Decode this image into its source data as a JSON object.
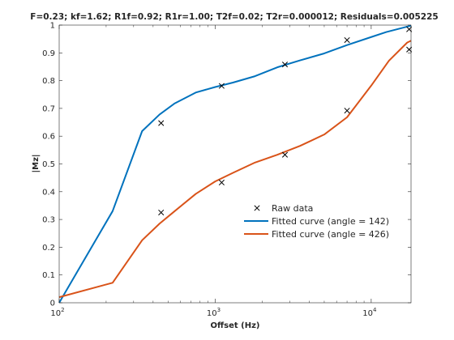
{
  "chart_data": {
    "type": "line",
    "title": "F=0.23; kf=1.62; R1f=0.92; R1r=1.00; T2f=0.02; T2r=0.000012; Residuals=0.005225",
    "xlabel": "Offset (Hz)",
    "ylabel": "|Mz|",
    "xscale": "log",
    "xlim": [
      100,
      18000
    ],
    "ylim": [
      0,
      1
    ],
    "yticks": [
      0,
      0.1,
      0.2,
      0.3,
      0.4,
      0.5,
      0.6,
      0.7,
      0.8,
      0.9,
      1
    ],
    "ytick_labels": [
      "0",
      "0.1",
      "0.2",
      "0.3",
      "0.4",
      "0.5",
      "0.6",
      "0.7",
      "0.8",
      "0.9",
      "1"
    ],
    "xticks": [
      {
        "value": 100,
        "base": "10",
        "exp": "2"
      },
      {
        "value": 1000,
        "base": "10",
        "exp": "3"
      },
      {
        "value": 10000,
        "base": "10",
        "exp": "4"
      }
    ],
    "grid": false,
    "legend_position": "lower-right",
    "series": [
      {
        "name": "Raw data",
        "kind": "marker",
        "marker": "x",
        "color": "#000000",
        "x": [
          450,
          1100,
          2800,
          7000,
          17500,
          450,
          1100,
          2800,
          7000,
          17500
        ],
        "y": [
          0.647,
          0.781,
          0.858,
          0.946,
          0.985,
          0.325,
          0.433,
          0.533,
          0.692,
          0.912
        ]
      },
      {
        "name": "Fitted curve (angle = 142)",
        "kind": "line",
        "color": "#0072BD",
        "x": [
          100,
          220,
          340,
          440,
          550,
          750,
          1000,
          1300,
          1800,
          2500,
          3500,
          5000,
          7000,
          10000,
          12500,
          18000
        ],
        "y": [
          0.0,
          0.33,
          0.618,
          0.678,
          0.718,
          0.757,
          0.777,
          0.793,
          0.816,
          0.848,
          0.873,
          0.898,
          0.928,
          0.957,
          0.975,
          0.998
        ]
      },
      {
        "name": "Fitted curve (angle = 426)",
        "kind": "line",
        "color": "#D95319",
        "x": [
          100,
          220,
          340,
          440,
          550,
          750,
          1000,
          1300,
          1800,
          2500,
          3500,
          5000,
          7000,
          10000,
          13000,
          17000,
          18000
        ],
        "y": [
          0.02,
          0.072,
          0.225,
          0.285,
          0.33,
          0.392,
          0.437,
          0.468,
          0.505,
          0.533,
          0.565,
          0.606,
          0.668,
          0.782,
          0.872,
          0.937,
          0.944
        ]
      }
    ]
  }
}
